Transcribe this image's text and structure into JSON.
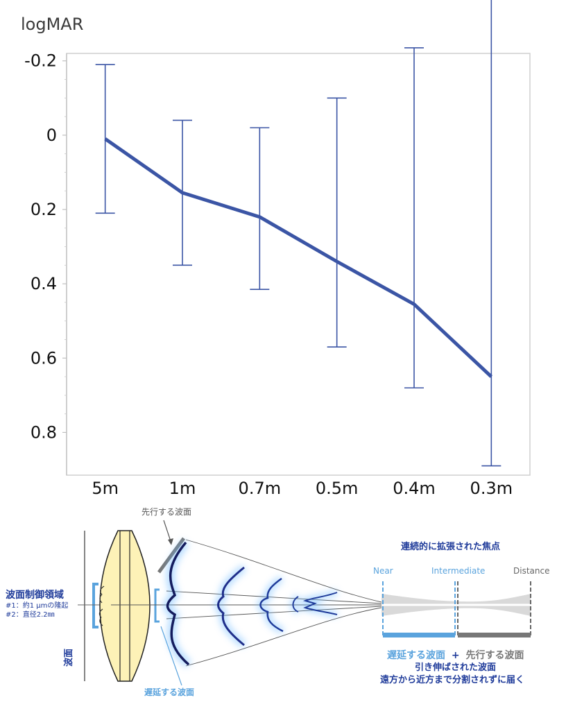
{
  "chart_data": {
    "type": "line",
    "title": "",
    "ylabel": "logMAR",
    "xlabel": "",
    "categories": [
      "5m",
      "1m",
      "0.7m",
      "0.5m",
      "0.4m",
      "0.3m"
    ],
    "series": [
      {
        "values": [
          0.01,
          0.155,
          0.22,
          0.34,
          0.455,
          0.65
        ],
        "err_low": [
          -0.19,
          -0.04,
          -0.02,
          -0.1,
          -0.235,
          -0.415
        ],
        "err_high": [
          0.21,
          0.35,
          0.415,
          0.57,
          0.68,
          0.89
        ],
        "color": "#3b55a5"
      }
    ],
    "yticks": [
      "-0.2",
      "0",
      "0.2",
      "0.4",
      "0.6",
      "0.8"
    ],
    "ylim": [
      -0.22,
      0.915
    ],
    "y_inverted": true,
    "grid": false,
    "legend": "none"
  },
  "diagram": {
    "leading_wavefront": "先行する波面",
    "delayed_wavefront": "遅延する波面",
    "control_area_title": "波面制御領域",
    "control_note_1": "#1：約1 μmの隆起",
    "control_note_2": "#2：直径2.2㎜",
    "wavefront_vertical": "波面",
    "focus_title": "連続的に拡張された焦点",
    "near": "Near",
    "intermediate": "Intermediate",
    "distance": "Distance",
    "combo_delayed": "遅延する波面",
    "combo_plus": "+",
    "combo_leading": "先行する波面",
    "stretched": "引き伸ばされた波面",
    "reach": "遠方から近方まで分割されずに届く",
    "colors": {
      "accent_blue": "#1f3b9a",
      "light_blue": "#5aa3dd",
      "lens_fill": "#fdf2b7",
      "grey": "#777777"
    }
  }
}
